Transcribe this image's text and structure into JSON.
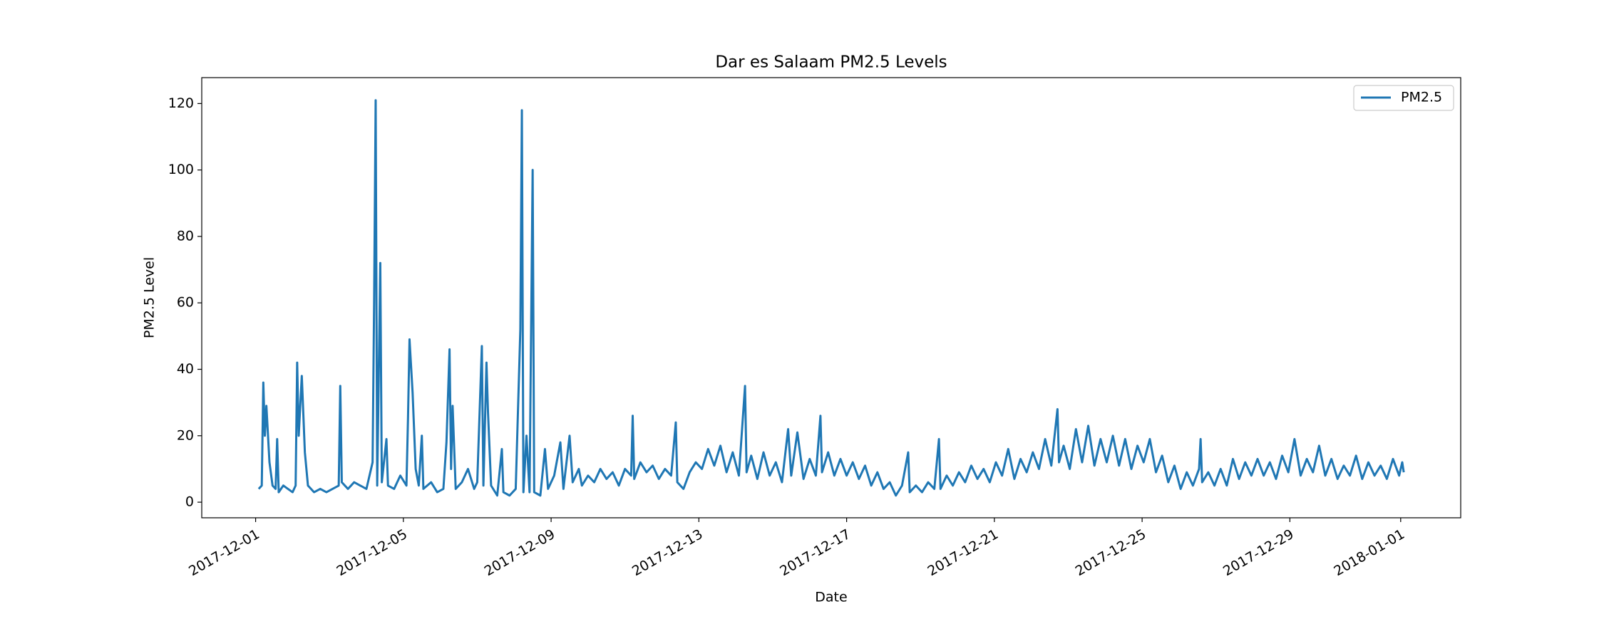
{
  "chart_data": {
    "type": "line",
    "title": "Dar es Salaam PM2.5 Levels",
    "xlabel": "Date",
    "ylabel": "PM2.5 Level",
    "legend": "upper right",
    "grid": false,
    "x": [
      "2017-12-01T02:00",
      "2017-12-01T04:00",
      "2017-12-01T05:00",
      "2017-12-01T06:00",
      "2017-12-01T07:00",
      "2017-12-01T09:00",
      "2017-12-01T11:00",
      "2017-12-01T13:00",
      "2017-12-01T14:00",
      "2017-12-01T15:00",
      "2017-12-01T18:00",
      "2017-12-01T21:00",
      "2017-12-02T00:00",
      "2017-12-02T02:00",
      "2017-12-02T03:00",
      "2017-12-02T04:00",
      "2017-12-02T06:00",
      "2017-12-02T08:00",
      "2017-12-02T10:00",
      "2017-12-02T14:00",
      "2017-12-02T18:00",
      "2017-12-02T22:00",
      "2017-12-03T02:00",
      "2017-12-03T06:00",
      "2017-12-03T07:00",
      "2017-12-03T08:00",
      "2017-12-03T12:00",
      "2017-12-03T16:00",
      "2017-12-03T20:00",
      "2017-12-04T00:00",
      "2017-12-04T04:00",
      "2017-12-04T05:00",
      "2017-12-04T06:00",
      "2017-12-04T07:00",
      "2017-12-04T09:00",
      "2017-12-04T10:00",
      "2017-12-04T13:00",
      "2017-12-04T14:00",
      "2017-12-04T18:00",
      "2017-12-04T22:00",
      "2017-12-05T02:00",
      "2017-12-05T03:00",
      "2017-12-05T04:00",
      "2017-12-05T06:00",
      "2017-12-05T08:00",
      "2017-12-05T10:00",
      "2017-12-05T12:00",
      "2017-12-05T13:00",
      "2017-12-05T18:00",
      "2017-12-05T22:00",
      "2017-12-06T02:00",
      "2017-12-06T04:00",
      "2017-12-06T06:00",
      "2017-12-06T07:00",
      "2017-12-06T08:00",
      "2017-12-06T10:00",
      "2017-12-06T14:00",
      "2017-12-06T18:00",
      "2017-12-06T22:00",
      "2017-12-07T00:00",
      "2017-12-07T03:00",
      "2017-12-07T04:00",
      "2017-12-07T06:00",
      "2017-12-07T07:00",
      "2017-12-07T09:00",
      "2017-12-07T13:00",
      "2017-12-07T16:00",
      "2017-12-07T17:00",
      "2017-12-07T21:00",
      "2017-12-08T01:00",
      "2017-12-08T04:00",
      "2017-12-08T05:00",
      "2017-12-08T06:00",
      "2017-12-08T08:00",
      "2017-12-08T10:00",
      "2017-12-08T12:00",
      "2017-12-08T13:00",
      "2017-12-08T17:00",
      "2017-12-08T20:00",
      "2017-12-08T22:00",
      "2017-12-09T02:00",
      "2017-12-09T06:00",
      "2017-12-09T08:00",
      "2017-12-09T12:00",
      "2017-12-09T14:00",
      "2017-12-09T18:00",
      "2017-12-09T20:00",
      "2017-12-10T00:00",
      "2017-12-10T04:00",
      "2017-12-10T08:00",
      "2017-12-10T12:00",
      "2017-12-10T16:00",
      "2017-12-10T20:00",
      "2017-12-11T00:00",
      "2017-12-11T04:00",
      "2017-12-11T05:00",
      "2017-12-11T06:00",
      "2017-12-11T10:00",
      "2017-12-11T14:00",
      "2017-12-11T18:00",
      "2017-12-11T22:00",
      "2017-12-12T02:00",
      "2017-12-12T06:00",
      "2017-12-12T09:00",
      "2017-12-12T10:00",
      "2017-12-12T14:00",
      "2017-12-12T18:00",
      "2017-12-12T22:00",
      "2017-12-13T02:00",
      "2017-12-13T06:00",
      "2017-12-13T10:00",
      "2017-12-13T14:00",
      "2017-12-13T18:00",
      "2017-12-13T22:00",
      "2017-12-14T02:00",
      "2017-12-14T06:00",
      "2017-12-14T07:00",
      "2017-12-14T10:00",
      "2017-12-14T14:00",
      "2017-12-14T18:00",
      "2017-12-14T22:00",
      "2017-12-15T02:00",
      "2017-12-15T06:00",
      "2017-12-15T10:00",
      "2017-12-15T12:00",
      "2017-12-15T16:00",
      "2017-12-15T20:00",
      "2017-12-16T00:00",
      "2017-12-16T04:00",
      "2017-12-16T07:00",
      "2017-12-16T08:00",
      "2017-12-16T12:00",
      "2017-12-16T16:00",
      "2017-12-16T20:00",
      "2017-12-17T00:00",
      "2017-12-17T04:00",
      "2017-12-17T08:00",
      "2017-12-17T12:00",
      "2017-12-17T16:00",
      "2017-12-17T20:00",
      "2017-12-18T00:00",
      "2017-12-18T04:00",
      "2017-12-18T08:00",
      "2017-12-18T12:00",
      "2017-12-18T16:00",
      "2017-12-18T17:00",
      "2017-12-18T21:00",
      "2017-12-19T01:00",
      "2017-12-19T05:00",
      "2017-12-19T09:00",
      "2017-12-19T12:00",
      "2017-12-19T13:00",
      "2017-12-19T17:00",
      "2017-12-19T21:00",
      "2017-12-20T01:00",
      "2017-12-20T05:00",
      "2017-12-20T09:00",
      "2017-12-20T13:00",
      "2017-12-20T17:00",
      "2017-12-20T21:00",
      "2017-12-21T01:00",
      "2017-12-21T05:00",
      "2017-12-21T09:00",
      "2017-12-21T13:00",
      "2017-12-21T17:00",
      "2017-12-21T21:00",
      "2017-12-22T01:00",
      "2017-12-22T05:00",
      "2017-12-22T09:00",
      "2017-12-22T13:00",
      "2017-12-22T17:00",
      "2017-12-22T18:00",
      "2017-12-22T21:00",
      "2017-12-23T01:00",
      "2017-12-23T05:00",
      "2017-12-23T09:00",
      "2017-12-23T13:00",
      "2017-12-23T17:00",
      "2017-12-23T21:00",
      "2017-12-24T01:00",
      "2017-12-24T05:00",
      "2017-12-24T09:00",
      "2017-12-24T13:00",
      "2017-12-24T17:00",
      "2017-12-24T21:00",
      "2017-12-25T01:00",
      "2017-12-25T05:00",
      "2017-12-25T09:00",
      "2017-12-25T13:00",
      "2017-12-25T17:00",
      "2017-12-25T21:00",
      "2017-12-26T01:00",
      "2017-12-26T05:00",
      "2017-12-26T09:00",
      "2017-12-26T13:00",
      "2017-12-26T14:00",
      "2017-12-26T15:00",
      "2017-12-26T19:00",
      "2017-12-26T23:00",
      "2017-12-27T03:00",
      "2017-12-27T07:00",
      "2017-12-27T11:00",
      "2017-12-27T15:00",
      "2017-12-27T19:00",
      "2017-12-27T23:00",
      "2017-12-28T03:00",
      "2017-12-28T07:00",
      "2017-12-28T11:00",
      "2017-12-28T15:00",
      "2017-12-28T19:00",
      "2017-12-28T23:00",
      "2017-12-29T03:00",
      "2017-12-29T07:00",
      "2017-12-29T11:00",
      "2017-12-29T15:00",
      "2017-12-29T19:00",
      "2017-12-29T23:00",
      "2017-12-30T03:00",
      "2017-12-30T07:00",
      "2017-12-30T11:00",
      "2017-12-30T15:00",
      "2017-12-30T19:00",
      "2017-12-30T23:00",
      "2017-12-31T03:00",
      "2017-12-31T07:00",
      "2017-12-31T11:00",
      "2017-12-31T15:00",
      "2017-12-31T19:00",
      "2017-12-31T23:00",
      "2018-01-01T01:00",
      "2018-01-01T02:00"
    ],
    "series": [
      {
        "name": "PM2.5",
        "color": "#1f77b4",
        "values": [
          4,
          5,
          36,
          20,
          29,
          12,
          5,
          4,
          19,
          3,
          5,
          4,
          3,
          5,
          42,
          20,
          38,
          15,
          5,
          3,
          4,
          3,
          4,
          5,
          35,
          6,
          4,
          6,
          5,
          4,
          12,
          60,
          121,
          5,
          72,
          6,
          19,
          5,
          4,
          8,
          5,
          25,
          49,
          33,
          10,
          5,
          20,
          4,
          6,
          3,
          4,
          18,
          46,
          10,
          29,
          4,
          6,
          10,
          4,
          6,
          47,
          5,
          42,
          27,
          5,
          2,
          16,
          3,
          2,
          4,
          52,
          118,
          3,
          20,
          3,
          100,
          3,
          2,
          16,
          4,
          8,
          18,
          4,
          20,
          6,
          10,
          5,
          8,
          6,
          10,
          7,
          9,
          5,
          10,
          8,
          26,
          7,
          12,
          9,
          11,
          7,
          10,
          8,
          24,
          6,
          4,
          9,
          12,
          10,
          16,
          11,
          17,
          9,
          15,
          8,
          35,
          9,
          14,
          7,
          15,
          8,
          12,
          6,
          22,
          8,
          21,
          7,
          13,
          8,
          26,
          9,
          15,
          8,
          13,
          8,
          12,
          7,
          11,
          5,
          9,
          4,
          6,
          2,
          5,
          15,
          3,
          5,
          3,
          6,
          4,
          19,
          4,
          8,
          5,
          9,
          6,
          11,
          7,
          10,
          6,
          12,
          8,
          16,
          7,
          13,
          9,
          15,
          10,
          19,
          11,
          28,
          12,
          17,
          10,
          22,
          12,
          23,
          11,
          19,
          12,
          20,
          11,
          19,
          10,
          17,
          12,
          19,
          9,
          14,
          6,
          11,
          4,
          9,
          5,
          10,
          19,
          6,
          9,
          5,
          10,
          5,
          13,
          7,
          12,
          8,
          13,
          8,
          12,
          7,
          14,
          9,
          19,
          8,
          13,
          9,
          17,
          8,
          13,
          7,
          11,
          8,
          14,
          7,
          12,
          8,
          11,
          7,
          13,
          8,
          12,
          9
        ]
      }
    ],
    "xlim": [
      "2017-11-29T13:00",
      "2018-01-02T15:00"
    ],
    "xticks": [
      "2017-12-01",
      "2017-12-05",
      "2017-12-09",
      "2017-12-13",
      "2017-12-17",
      "2017-12-21",
      "2017-12-25",
      "2017-12-29",
      "2018-01-01"
    ],
    "ylim": [
      -4.7,
      127.8
    ],
    "yticks": [
      0,
      20,
      40,
      60,
      80,
      100,
      120
    ]
  }
}
